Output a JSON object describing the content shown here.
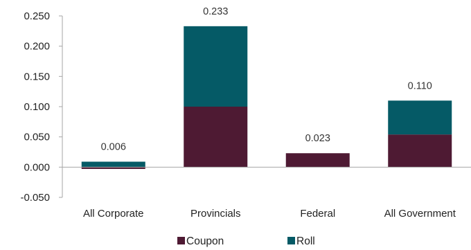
{
  "chart_data": {
    "type": "bar",
    "stacked": true,
    "categories": [
      "All Corporate",
      "Provincials",
      "Federal",
      "All Government"
    ],
    "series": [
      {
        "name": "Coupon",
        "values": [
          -0.003,
          0.1,
          0.023,
          0.054
        ],
        "color": "#4e1a33"
      },
      {
        "name": "Roll",
        "values": [
          0.009,
          0.133,
          0.0,
          0.056
        ],
        "color": "#055a66"
      }
    ],
    "totals": [
      0.006,
      0.233,
      0.023,
      0.11
    ],
    "total_labels": [
      "0.006",
      "0.233",
      "0.023",
      "0.110"
    ],
    "yticks": [
      "0.250",
      "0.200",
      "0.150",
      "0.100",
      "0.050",
      "0.000",
      "-0.050"
    ],
    "ytick_values": [
      0.25,
      0.2,
      0.15,
      0.1,
      0.05,
      0.0,
      -0.05
    ],
    "ylim": [
      -0.05,
      0.25
    ],
    "grid": false,
    "legend_position": "bottom-center",
    "title": "",
    "xlabel": "",
    "ylabel": ""
  }
}
